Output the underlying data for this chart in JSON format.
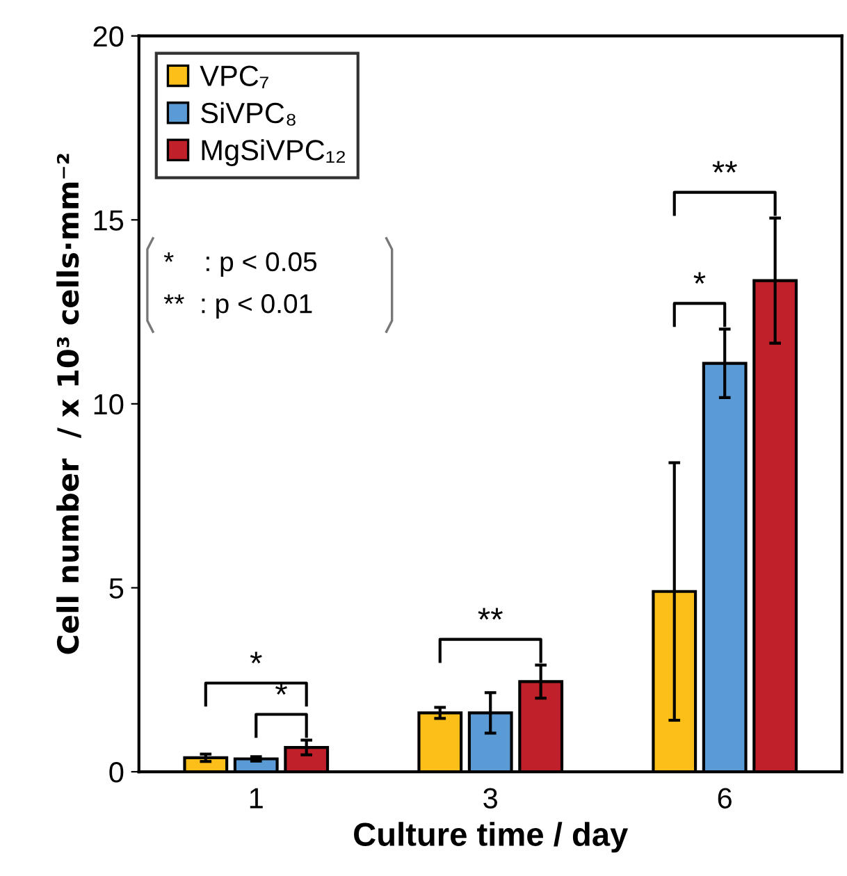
{
  "chart_data": {
    "type": "bar",
    "xlabel": "Culture time / day",
    "ylabel": "Cell number  / x 10³ cells·mm⁻²",
    "categories": [
      "1",
      "3",
      "6"
    ],
    "series": [
      {
        "name": "VPC₇",
        "color": "#fcbf19",
        "values": [
          0.38,
          1.6,
          4.9
        ],
        "errors": [
          0.1,
          0.15,
          3.5
        ]
      },
      {
        "name": "SiVPC₈",
        "color": "#5b9bd5",
        "values": [
          0.35,
          1.6,
          11.1
        ],
        "errors": [
          0.06,
          0.55,
          0.93
        ]
      },
      {
        "name": "MgSiVPC₁₂",
        "color": "#c0202a",
        "values": [
          0.66,
          2.45,
          13.35
        ],
        "errors": [
          0.2,
          0.45,
          1.7
        ]
      }
    ],
    "ylim": [
      0,
      20
    ],
    "yticks": [
      0,
      5,
      10,
      15,
      20
    ],
    "grid": false,
    "legend": "top left",
    "annotations": [
      "*",
      "*",
      "**",
      "*",
      "**",
      "*    : p < 0.05",
      "**  : p < 0.01"
    ]
  }
}
